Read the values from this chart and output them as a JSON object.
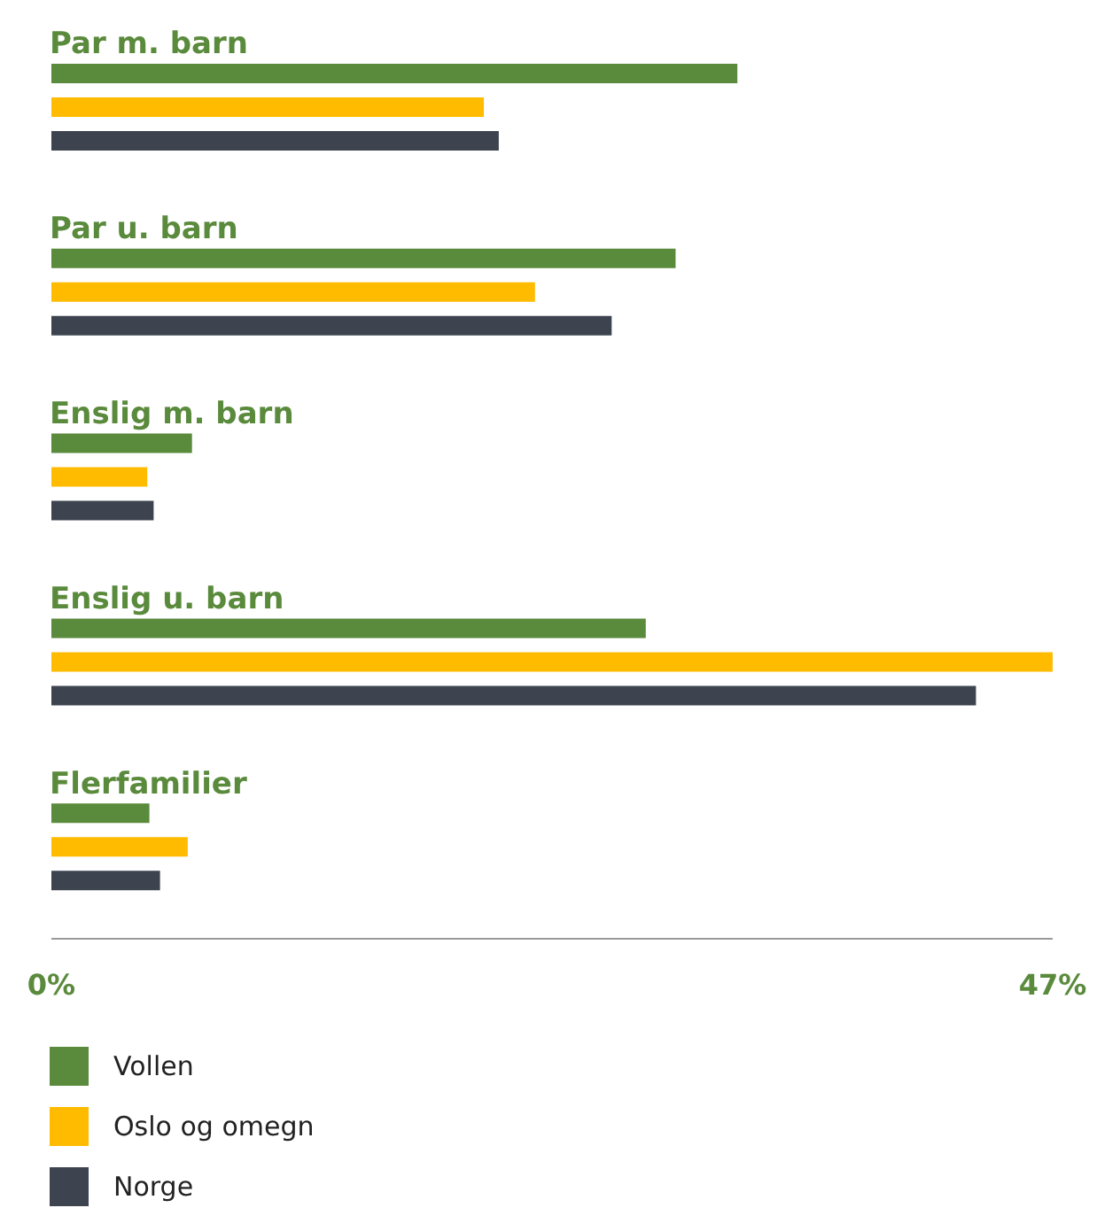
{
  "chart_data": {
    "type": "bar",
    "orientation": "horizontal",
    "categories": [
      "Par m. barn",
      "Par u. barn",
      "Enslig m. barn",
      "Enslig u. barn",
      "Flerfamilier"
    ],
    "series": [
      {
        "name": "Vollen",
        "color": "#5a8a3c",
        "values": [
          32.2,
          29.3,
          6.6,
          27.9,
          4.6
        ]
      },
      {
        "name": "Oslo og omegn",
        "color": "#ffbb00",
        "values": [
          20.3,
          22.7,
          4.5,
          47,
          6.4
        ]
      },
      {
        "name": "Norge",
        "color": "#3d4450",
        "values": [
          21.0,
          26.3,
          4.8,
          43.4,
          5.1
        ]
      }
    ],
    "xlim": [
      0,
      47
    ],
    "xticks": [
      {
        "value": 0,
        "label": "0%"
      },
      {
        "value": 47,
        "label": "47%"
      }
    ],
    "grid": false,
    "legend": "bottom left"
  }
}
